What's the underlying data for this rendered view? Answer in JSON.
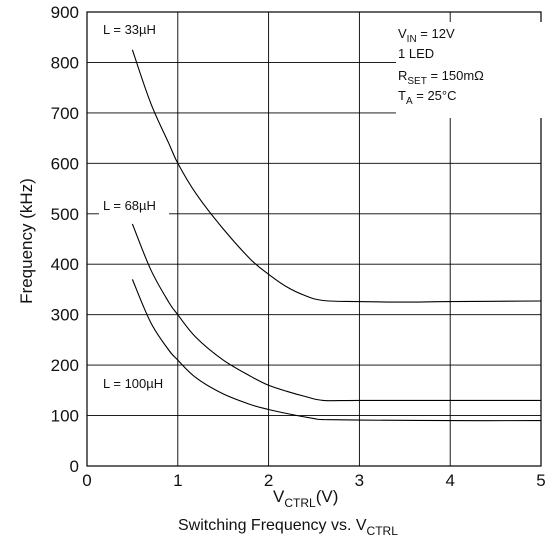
{
  "chart_data": {
    "type": "line",
    "title": "",
    "caption": {
      "text": "Switching Frequency vs. V",
      "sub": "CTRL"
    },
    "xlabel": {
      "text": "V",
      "sub": "CTRL",
      "unit": "(V)"
    },
    "ylabel": "Frequency (kHz)",
    "xlim": [
      0,
      5
    ],
    "ylim": [
      0,
      900
    ],
    "xticks": [
      "0",
      "1",
      "2",
      "3",
      "4",
      "5"
    ],
    "yticks": [
      "0",
      "100",
      "200",
      "300",
      "400",
      "500",
      "600",
      "700",
      "800",
      "900"
    ],
    "grid": true,
    "conditions": [
      {
        "main": "V",
        "sub": "IN",
        "rest": " = 12V"
      },
      {
        "main": "1 LED",
        "sub": "",
        "rest": ""
      },
      {
        "main": "R",
        "sub": "SET",
        "rest": " = 150mΩ"
      },
      {
        "main": "T",
        "sub": "A",
        "rest": " = 25°C"
      }
    ],
    "series": [
      {
        "name": "L = 33µH",
        "x": [
          0.5,
          0.7,
          0.9,
          1.0,
          1.2,
          1.5,
          1.8,
          2.0,
          2.2,
          2.4,
          2.6,
          3.0,
          3.5,
          4.0,
          5.0
        ],
        "y": [
          825,
          720,
          640,
          600,
          540,
          470,
          410,
          380,
          355,
          338,
          328,
          326,
          325,
          326,
          327
        ]
      },
      {
        "name": "L = 68µH",
        "x": [
          0.5,
          0.7,
          0.9,
          1.0,
          1.2,
          1.5,
          1.8,
          2.0,
          2.2,
          2.4,
          2.6,
          3.0,
          4.0,
          5.0
        ],
        "y": [
          480,
          390,
          325,
          300,
          255,
          210,
          178,
          160,
          148,
          138,
          130,
          130,
          130,
          130
        ]
      },
      {
        "name": "L = 100µH",
        "x": [
          0.5,
          0.7,
          0.9,
          1.0,
          1.2,
          1.5,
          1.8,
          2.0,
          2.2,
          2.5,
          2.6,
          3.0,
          4.0,
          5.0
        ],
        "y": [
          370,
          285,
          230,
          210,
          175,
          143,
          122,
          112,
          104,
          94,
          92,
          91,
          90,
          90
        ]
      }
    ]
  }
}
